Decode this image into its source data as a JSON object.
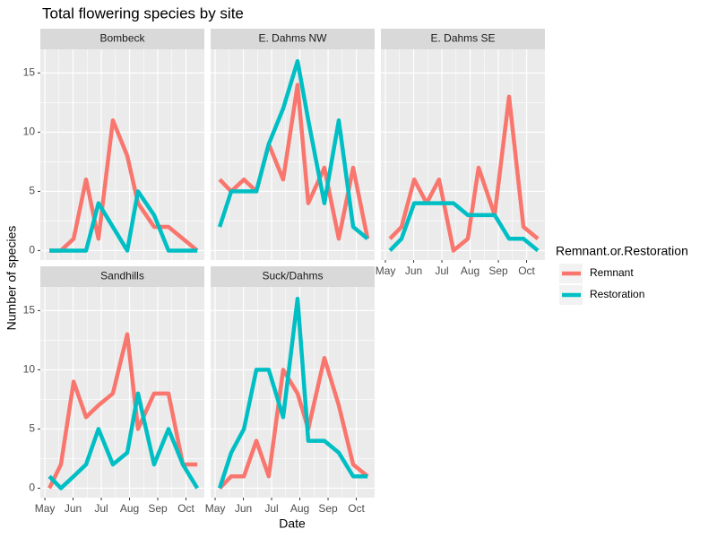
{
  "title": "Total flowering species by site",
  "x_label": "Date",
  "y_label": "Number of species",
  "legend": {
    "title": "Remnant.or.Restoration",
    "entries": [
      {
        "name": "Remnant",
        "color": "#F8766D"
      },
      {
        "name": "Restoration",
        "color": "#00BFC4"
      }
    ]
  },
  "xlim": [
    4.84,
    10.65
  ],
  "xticks": [
    {
      "value": 5,
      "label": "May"
    },
    {
      "value": 6,
      "label": "Jun"
    },
    {
      "value": 7,
      "label": "Jul"
    },
    {
      "value": 8,
      "label": "Aug"
    },
    {
      "value": 9,
      "label": "Sep"
    },
    {
      "value": 10,
      "label": "Oct"
    }
  ],
  "ylim": [
    -0.8,
    17
  ],
  "yticks": [
    0,
    5,
    10,
    15
  ],
  "grid": true,
  "chart_data": [
    {
      "type": "line",
      "title": "Bombeck",
      "x": [
        5.16,
        5.57,
        6.02,
        6.46,
        6.9,
        7.41,
        7.92,
        8.3,
        8.87,
        9.38,
        9.89,
        10.4
      ],
      "series": [
        {
          "values": [
            0,
            0,
            1,
            6,
            1,
            11,
            8,
            4,
            2,
            2,
            1,
            0
          ]
        },
        {
          "values": [
            0,
            0,
            0,
            0,
            4,
            2,
            0,
            5,
            3,
            0,
            0,
            0
          ]
        }
      ]
    },
    {
      "type": "line",
      "title": "E. Dahms NW",
      "x": [
        5.16,
        5.57,
        6.02,
        6.46,
        6.9,
        7.41,
        7.92,
        8.3,
        8.87,
        9.38,
        9.89,
        10.4
      ],
      "series": [
        {
          "values": [
            6,
            5,
            6,
            5,
            9,
            6,
            14,
            4,
            7,
            1,
            7,
            1
          ]
        },
        {
          "values": [
            2,
            5,
            5,
            5,
            9,
            12,
            16,
            11,
            4,
            11,
            2,
            1
          ]
        }
      ]
    },
    {
      "type": "line",
      "title": "E. Dahms SE",
      "x": [
        5.16,
        5.57,
        6.02,
        6.46,
        6.9,
        7.41,
        7.92,
        8.3,
        8.87,
        9.38,
        9.89,
        10.4
      ],
      "series": [
        {
          "values": [
            1,
            2,
            6,
            4,
            6,
            0,
            1,
            7,
            3,
            13,
            2,
            1
          ]
        },
        {
          "values": [
            0,
            1,
            4,
            4,
            4,
            4,
            3,
            3,
            3,
            1,
            1,
            0
          ]
        }
      ]
    },
    {
      "type": "line",
      "title": "Sandhills",
      "x": [
        5.16,
        5.57,
        6.02,
        6.46,
        6.9,
        7.41,
        7.92,
        8.3,
        8.87,
        9.38,
        9.89,
        10.4
      ],
      "series": [
        {
          "values": [
            0,
            2,
            9,
            6,
            7,
            8,
            13,
            5,
            8,
            8,
            2,
            2
          ]
        },
        {
          "values": [
            1,
            0,
            1,
            2,
            5,
            2,
            3,
            8,
            2,
            5,
            2,
            0
          ]
        }
      ]
    },
    {
      "type": "line",
      "title": "Suck/Dahms",
      "x": [
        5.16,
        5.57,
        6.02,
        6.46,
        6.9,
        7.41,
        7.92,
        8.3,
        8.87,
        9.38,
        9.89,
        10.4
      ],
      "series": [
        {
          "values": [
            0,
            1,
            1,
            4,
            1,
            10,
            8,
            5,
            11,
            7,
            2,
            1
          ]
        },
        {
          "values": [
            0,
            3,
            5,
            10,
            10,
            6,
            16,
            4,
            4,
            3,
            1,
            1
          ]
        }
      ]
    }
  ]
}
